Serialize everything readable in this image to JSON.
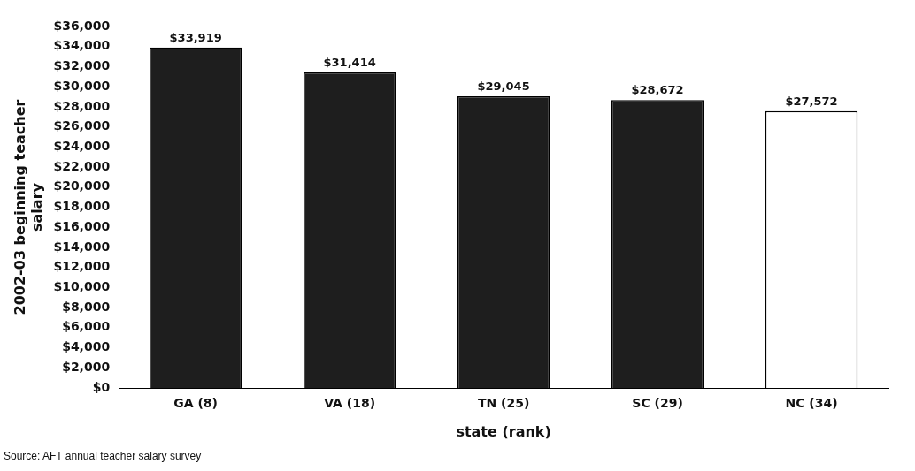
{
  "chart_data": {
    "type": "bar",
    "categories": [
      "GA (8)",
      "VA (18)",
      "TN (25)",
      "SC (29)",
      "NC (34)"
    ],
    "values": [
      33919,
      31414,
      29045,
      28672,
      27572
    ],
    "colors": [
      "#1e1e1e",
      "#1e1e1e",
      "#1e1e1e",
      "#1e1e1e",
      "#ffffff"
    ],
    "value_labels": [
      "$33,919",
      "$31,414",
      "$29,045",
      "$28,672",
      "$27,572"
    ],
    "xlabel": "state (rank)",
    "ylabel": "2002-03 beginning teacher salary",
    "ylim": [
      0,
      36000
    ],
    "yticks": [
      {
        "value": 0,
        "label": "$0"
      },
      {
        "value": 2000,
        "label": "$2,000"
      },
      {
        "value": 4000,
        "label": "$4,000"
      },
      {
        "value": 6000,
        "label": "$6,000"
      },
      {
        "value": 8000,
        "label": "$8,000"
      },
      {
        "value": 10000,
        "label": "$10,000"
      },
      {
        "value": 12000,
        "label": "$12,000"
      },
      {
        "value": 14000,
        "label": "$14,000"
      },
      {
        "value": 16000,
        "label": "$16,000"
      },
      {
        "value": 18000,
        "label": "$18,000"
      },
      {
        "value": 20000,
        "label": "$20,000"
      },
      {
        "value": 22000,
        "label": "$22,000"
      },
      {
        "value": 24000,
        "label": "$24,000"
      },
      {
        "value": 26000,
        "label": "$26,000"
      },
      {
        "value": 28000,
        "label": "$28,000"
      },
      {
        "value": 30000,
        "label": "$30,000"
      },
      {
        "value": 32000,
        "label": "$32,000"
      },
      {
        "value": 34000,
        "label": "$34,000"
      },
      {
        "value": 36000,
        "label": "$36,000"
      }
    ],
    "grid": false,
    "legend": false,
    "annotations": [
      "Source: AFT annual teacher salary survey"
    ]
  }
}
